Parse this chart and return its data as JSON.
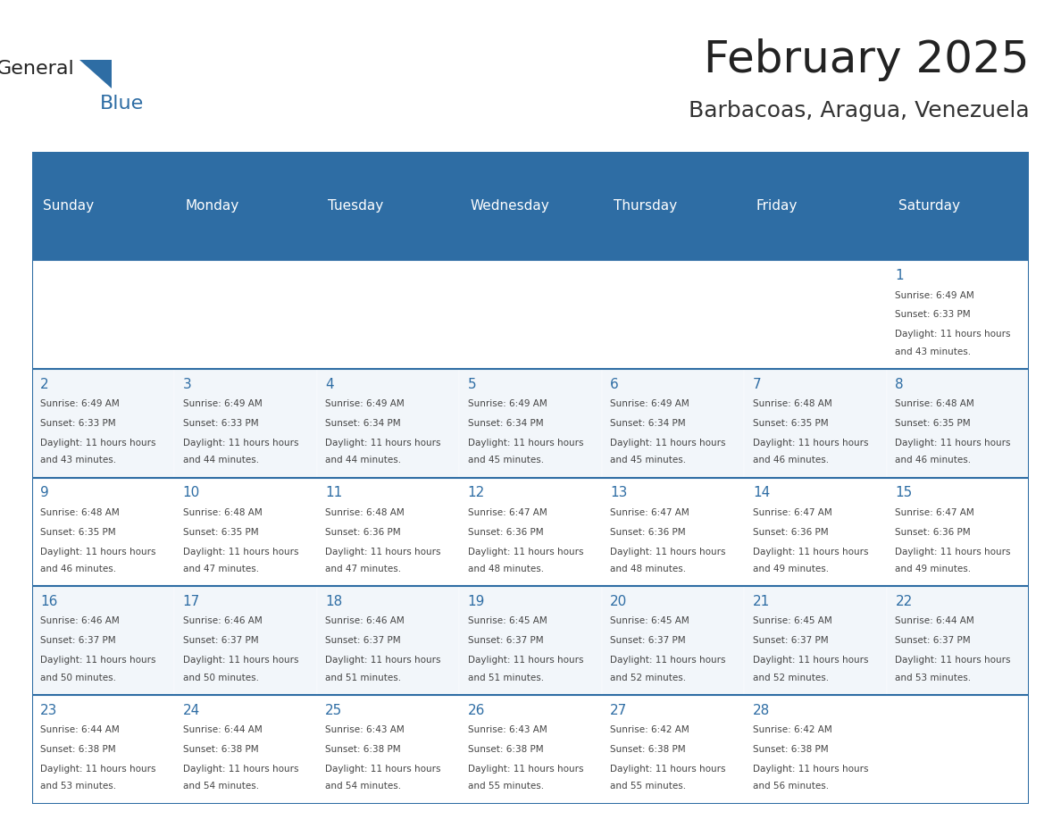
{
  "title": "February 2025",
  "subtitle": "Barbacoas, Aragua, Venezuela",
  "header_bg": "#2e6da4",
  "header_text_color": "#ffffff",
  "cell_bg_white": "#ffffff",
  "cell_bg_light": "#f0f4f8",
  "border_color": "#2e6da4",
  "day_names": [
    "Sunday",
    "Monday",
    "Tuesday",
    "Wednesday",
    "Thursday",
    "Friday",
    "Saturday"
  ],
  "title_color": "#222222",
  "subtitle_color": "#333333",
  "day_num_color": "#2e6da4",
  "info_color": "#444444",
  "calendar": [
    [
      null,
      null,
      null,
      null,
      null,
      null,
      {
        "day": 1,
        "sunrise": "6:49 AM",
        "sunset": "6:33 PM",
        "daylight": "11 hours and 43 minutes."
      }
    ],
    [
      {
        "day": 2,
        "sunrise": "6:49 AM",
        "sunset": "6:33 PM",
        "daylight": "11 hours and 43 minutes."
      },
      {
        "day": 3,
        "sunrise": "6:49 AM",
        "sunset": "6:33 PM",
        "daylight": "11 hours and 44 minutes."
      },
      {
        "day": 4,
        "sunrise": "6:49 AM",
        "sunset": "6:34 PM",
        "daylight": "11 hours and 44 minutes."
      },
      {
        "day": 5,
        "sunrise": "6:49 AM",
        "sunset": "6:34 PM",
        "daylight": "11 hours and 45 minutes."
      },
      {
        "day": 6,
        "sunrise": "6:49 AM",
        "sunset": "6:34 PM",
        "daylight": "11 hours and 45 minutes."
      },
      {
        "day": 7,
        "sunrise": "6:48 AM",
        "sunset": "6:35 PM",
        "daylight": "11 hours and 46 minutes."
      },
      {
        "day": 8,
        "sunrise": "6:48 AM",
        "sunset": "6:35 PM",
        "daylight": "11 hours and 46 minutes."
      }
    ],
    [
      {
        "day": 9,
        "sunrise": "6:48 AM",
        "sunset": "6:35 PM",
        "daylight": "11 hours and 46 minutes."
      },
      {
        "day": 10,
        "sunrise": "6:48 AM",
        "sunset": "6:35 PM",
        "daylight": "11 hours and 47 minutes."
      },
      {
        "day": 11,
        "sunrise": "6:48 AM",
        "sunset": "6:36 PM",
        "daylight": "11 hours and 47 minutes."
      },
      {
        "day": 12,
        "sunrise": "6:47 AM",
        "sunset": "6:36 PM",
        "daylight": "11 hours and 48 minutes."
      },
      {
        "day": 13,
        "sunrise": "6:47 AM",
        "sunset": "6:36 PM",
        "daylight": "11 hours and 48 minutes."
      },
      {
        "day": 14,
        "sunrise": "6:47 AM",
        "sunset": "6:36 PM",
        "daylight": "11 hours and 49 minutes."
      },
      {
        "day": 15,
        "sunrise": "6:47 AM",
        "sunset": "6:36 PM",
        "daylight": "11 hours and 49 minutes."
      }
    ],
    [
      {
        "day": 16,
        "sunrise": "6:46 AM",
        "sunset": "6:37 PM",
        "daylight": "11 hours and 50 minutes."
      },
      {
        "day": 17,
        "sunrise": "6:46 AM",
        "sunset": "6:37 PM",
        "daylight": "11 hours and 50 minutes."
      },
      {
        "day": 18,
        "sunrise": "6:46 AM",
        "sunset": "6:37 PM",
        "daylight": "11 hours and 51 minutes."
      },
      {
        "day": 19,
        "sunrise": "6:45 AM",
        "sunset": "6:37 PM",
        "daylight": "11 hours and 51 minutes."
      },
      {
        "day": 20,
        "sunrise": "6:45 AM",
        "sunset": "6:37 PM",
        "daylight": "11 hours and 52 minutes."
      },
      {
        "day": 21,
        "sunrise": "6:45 AM",
        "sunset": "6:37 PM",
        "daylight": "11 hours and 52 minutes."
      },
      {
        "day": 22,
        "sunrise": "6:44 AM",
        "sunset": "6:37 PM",
        "daylight": "11 hours and 53 minutes."
      }
    ],
    [
      {
        "day": 23,
        "sunrise": "6:44 AM",
        "sunset": "6:38 PM",
        "daylight": "11 hours and 53 minutes."
      },
      {
        "day": 24,
        "sunrise": "6:44 AM",
        "sunset": "6:38 PM",
        "daylight": "11 hours and 54 minutes."
      },
      {
        "day": 25,
        "sunrise": "6:43 AM",
        "sunset": "6:38 PM",
        "daylight": "11 hours and 54 minutes."
      },
      {
        "day": 26,
        "sunrise": "6:43 AM",
        "sunset": "6:38 PM",
        "daylight": "11 hours and 55 minutes."
      },
      {
        "day": 27,
        "sunrise": "6:42 AM",
        "sunset": "6:38 PM",
        "daylight": "11 hours and 55 minutes."
      },
      {
        "day": 28,
        "sunrise": "6:42 AM",
        "sunset": "6:38 PM",
        "daylight": "11 hours and 56 minutes."
      },
      null
    ]
  ]
}
